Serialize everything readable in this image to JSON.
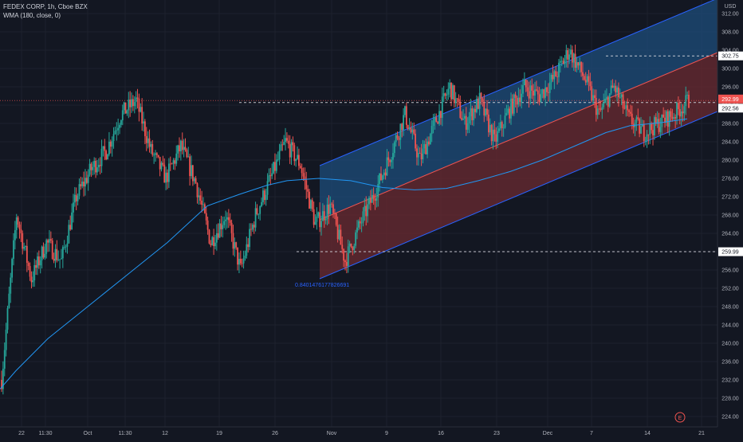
{
  "header": {
    "symbol_line": "FEDEX CORP, 1h, Cboe BZX",
    "indicator_line": "WMA (180, close, 0)"
  },
  "chart_data": {
    "type": "candlestick",
    "currency_label": "USD",
    "y_ticks": [
      224,
      228,
      232,
      236,
      240,
      244,
      248,
      252,
      256,
      260,
      264,
      268,
      272,
      276,
      280,
      284,
      288,
      292,
      296,
      300,
      304,
      308,
      312
    ],
    "ylim": [
      222,
      314
    ],
    "x_tick_labels": [
      "22",
      "11:30",
      "Oct",
      "11:30",
      "12",
      "19",
      "26",
      "Nov",
      "9",
      "16",
      "23",
      "Dec",
      "7",
      "14",
      "21"
    ],
    "price_labels": [
      {
        "value": 302.75,
        "text": "302.75",
        "style": "white"
      },
      {
        "value": 292.99,
        "text": "292.99",
        "style": "red"
      },
      {
        "value": 292.56,
        "text": "292.56",
        "style": "white"
      },
      {
        "value": 259.99,
        "text": "259.99",
        "style": "white"
      }
    ],
    "channel_label": "0.8401476177826691",
    "earnings_marker": "E",
    "colors": {
      "up": "#26a69a",
      "down": "#ef5350",
      "wma": "#2196f3",
      "channel_upper_fill": "#1e4d7b",
      "channel_lower_fill": "#6b2b32",
      "background": "#131722"
    },
    "segments": [
      {
        "from": 232,
        "to": 268
      },
      {
        "from": 268,
        "to": 254
      },
      {
        "from": 254,
        "to": 262
      },
      {
        "from": 262,
        "to": 258
      },
      {
        "from": 258,
        "to": 272
      },
      {
        "from": 272,
        "to": 278
      },
      {
        "from": 278,
        "to": 282
      },
      {
        "from": 282,
        "to": 290
      },
      {
        "from": 290,
        "to": 293
      },
      {
        "from": 293,
        "to": 282
      },
      {
        "from": 282,
        "to": 276
      },
      {
        "from": 276,
        "to": 283
      },
      {
        "from": 283,
        "to": 275
      },
      {
        "from": 275,
        "to": 262
      },
      {
        "from": 262,
        "to": 268
      },
      {
        "from": 268,
        "to": 256
      },
      {
        "from": 256,
        "to": 268
      },
      {
        "from": 268,
        "to": 276
      },
      {
        "from": 276,
        "to": 284
      },
      {
        "from": 284,
        "to": 279
      },
      {
        "from": 279,
        "to": 266
      },
      {
        "from": 266,
        "to": 270
      },
      {
        "from": 270,
        "to": 258
      },
      {
        "from": 258,
        "to": 266
      },
      {
        "from": 266,
        "to": 273
      },
      {
        "from": 273,
        "to": 281
      },
      {
        "from": 281,
        "to": 290
      },
      {
        "from": 290,
        "to": 280
      },
      {
        "from": 280,
        "to": 288
      },
      {
        "from": 288,
        "to": 296
      },
      {
        "from": 296,
        "to": 288
      },
      {
        "from": 288,
        "to": 293
      },
      {
        "from": 293,
        "to": 284
      },
      {
        "from": 284,
        "to": 291
      },
      {
        "from": 291,
        "to": 296
      },
      {
        "from": 296,
        "to": 294
      },
      {
        "from": 294,
        "to": 298
      },
      {
        "from": 298,
        "to": 304
      },
      {
        "from": 304,
        "to": 298
      },
      {
        "from": 298,
        "to": 290
      },
      {
        "from": 290,
        "to": 296
      },
      {
        "from": 296,
        "to": 289
      },
      {
        "from": 289,
        "to": 286
      },
      {
        "from": 286,
        "to": 288
      },
      {
        "from": 288,
        "to": 290
      },
      {
        "from": 290,
        "to": 293
      }
    ],
    "wma": [
      [
        0,
        230
      ],
      [
        20,
        234
      ],
      [
        60,
        241
      ],
      [
        110,
        248
      ],
      [
        160,
        255
      ],
      [
        210,
        262
      ],
      [
        260,
        270
      ],
      [
        300,
        272.5
      ],
      [
        335,
        274.5
      ],
      [
        360,
        275.5
      ],
      [
        400,
        276
      ],
      [
        440,
        275.5
      ],
      [
        480,
        274
      ],
      [
        520,
        273.5
      ],
      [
        560,
        273.8
      ],
      [
        600,
        275.5
      ],
      [
        640,
        277.5
      ],
      [
        680,
        280
      ],
      [
        720,
        283
      ],
      [
        760,
        286
      ],
      [
        790,
        287.5
      ],
      [
        830,
        288.2
      ],
      [
        862,
        289
      ]
    ]
  }
}
